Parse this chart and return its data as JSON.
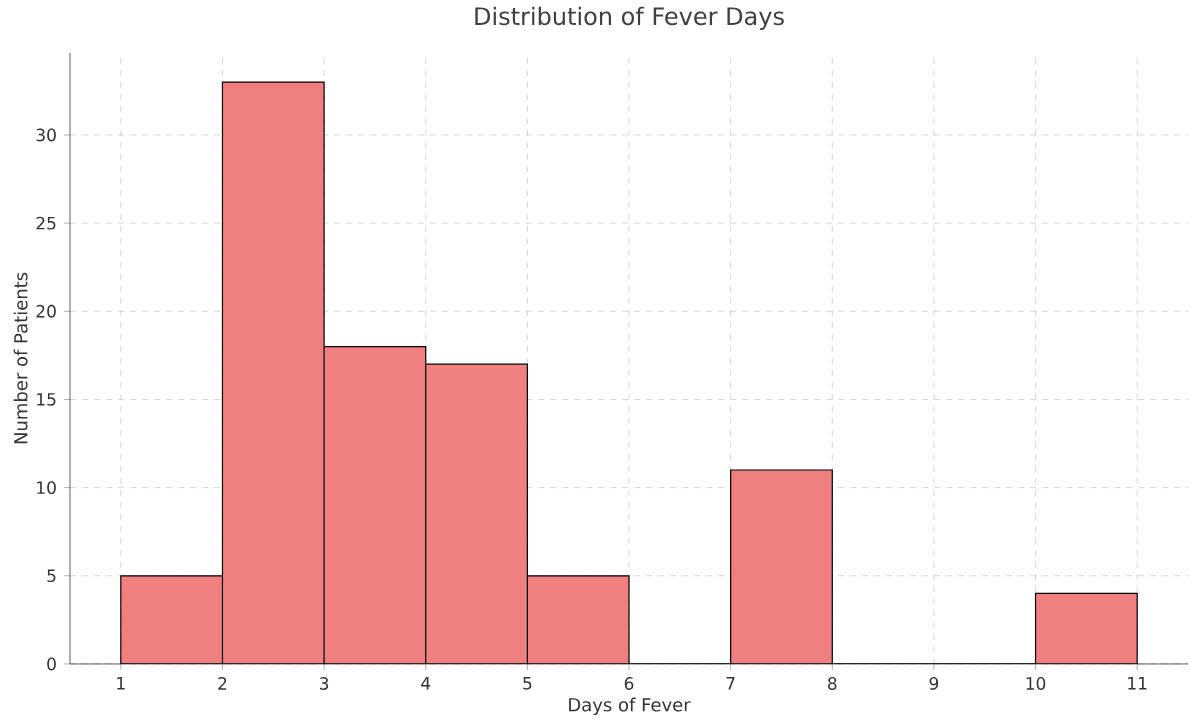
{
  "chart_data": {
    "type": "histogram",
    "title": "Distribution of Fever Days",
    "xlabel": "Days of Fever",
    "ylabel": "Number of Patients",
    "bins": [
      1,
      2,
      3,
      4,
      5,
      6,
      7,
      8,
      9,
      10,
      11
    ],
    "values": [
      5,
      33,
      18,
      17,
      5,
      0,
      11,
      0,
      0,
      4
    ],
    "color": "#f08080",
    "xlim": [
      0.5,
      11.5
    ],
    "ylim": [
      0,
      34.65
    ],
    "xticks": [
      1,
      2,
      3,
      4,
      5,
      6,
      7,
      8,
      9,
      10,
      11
    ],
    "yticks": [
      0,
      5,
      10,
      15,
      20,
      25,
      30
    ],
    "grid": true
  }
}
